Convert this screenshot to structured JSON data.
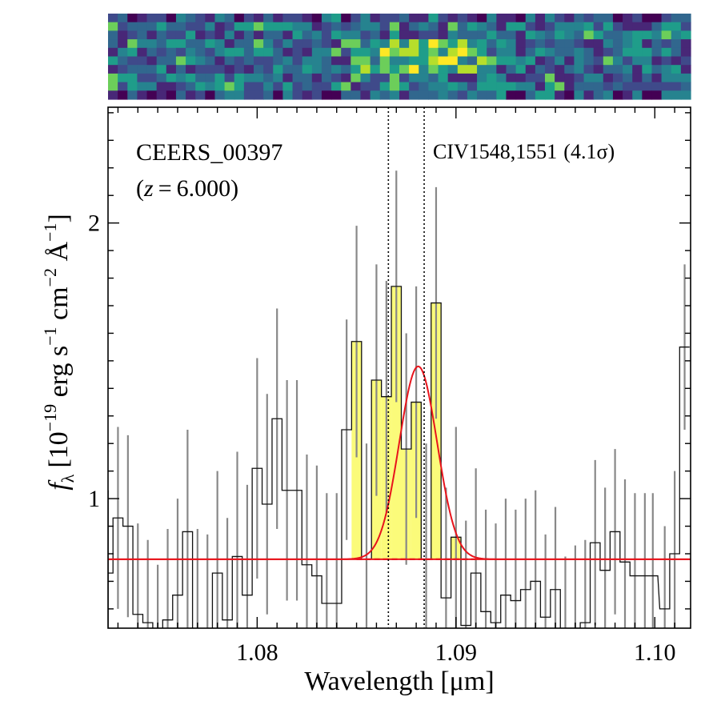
{
  "chart_data": {
    "type": "step",
    "object_label": "CEERS_00397",
    "redshift_label": "(z = 6.000)",
    "redshift_z": "z",
    "redshift_value": "6.000",
    "redshift_open": "(",
    "redshift_close": ")",
    "redshift_eq": "=",
    "line_label": "CIV1548,1551",
    "line_sigma": "(4.1σ)",
    "xlabel": "Wavelength [μm]",
    "ylabel": "f_λ [10^-19 erg s^-1 cm^-2 Å^-1]",
    "ylabel_parts": {
      "f": "f",
      "lambda": "λ",
      "open": "[10",
      "exp1": "−19",
      "erg": " erg s",
      "exp2": "−1",
      "cm": " cm",
      "exp3": "−2",
      "angstrom": " Å",
      "exp4": "−1",
      "close": "]"
    },
    "xlim": [
      1.0725,
      1.1018
    ],
    "ylim": [
      0.53,
      2.42
    ],
    "xticks": [
      1.08,
      1.09,
      1.1
    ],
    "xtick_labels": [
      "1.08",
      "1.09",
      "1.10"
    ],
    "yticks": [
      1,
      2
    ],
    "ytick_labels": [
      "1",
      "2"
    ],
    "continuum": 0.78,
    "line_markers": [
      1.0866,
      1.0884
    ],
    "gaussian": {
      "center": 1.0881,
      "amplitude": 0.7,
      "sigma": 0.00095
    },
    "highlight_range": [
      1.085,
      1.091
    ],
    "bin_width": 0.0005,
    "x": [
      1.0725,
      1.073,
      1.0735,
      1.074,
      1.0745,
      1.075,
      1.0755,
      1.076,
      1.0765,
      1.077,
      1.0775,
      1.078,
      1.0785,
      1.079,
      1.0795,
      1.08,
      1.0805,
      1.081,
      1.0815,
      1.082,
      1.0825,
      1.083,
      1.0835,
      1.084,
      1.0845,
      1.085,
      1.0855,
      1.086,
      1.0865,
      1.087,
      1.0875,
      1.088,
      1.0885,
      1.089,
      1.0895,
      1.09,
      1.0905,
      1.091,
      1.0915,
      1.092,
      1.0925,
      1.093,
      1.0935,
      1.094,
      1.0945,
      1.095,
      1.0955,
      1.096,
      1.0965,
      1.097,
      1.0975,
      1.098,
      1.0985,
      1.099,
      1.0995,
      1.0999,
      1.1005,
      1.101,
      1.1015
    ],
    "y": [
      0.73,
      0.93,
      0.9,
      0.58,
      0.55,
      0.43,
      0.56,
      0.65,
      0.88,
      0.52,
      0.5,
      0.73,
      0.56,
      0.79,
      0.65,
      1.11,
      0.98,
      1.29,
      1.03,
      1.03,
      0.76,
      0.72,
      0.62,
      0.62,
      1.25,
      1.57,
      0.78,
      1.43,
      1.37,
      1.77,
      1.18,
      1.35,
      0.78,
      1.71,
      0.64,
      0.86,
      0.54,
      0.73,
      0.59,
      0.55,
      0.65,
      0.63,
      0.67,
      0.7,
      0.57,
      0.67,
      0.49,
      0.53,
      0.55,
      0.84,
      0.74,
      0.88,
      0.77,
      0.72,
      0.72,
      0.72,
      0.6,
      0.8,
      1.55
    ],
    "errors": [
      0.3,
      0.33,
      0.33,
      0.33,
      0.3,
      0.33,
      0.33,
      0.35,
      0.37,
      0.37,
      0.37,
      0.37,
      0.37,
      0.38,
      0.4,
      0.4,
      0.4,
      0.4,
      0.4,
      0.4,
      0.4,
      0.4,
      0.4,
      0.4,
      0.4,
      0.42,
      0.42,
      0.42,
      0.42,
      0.42,
      0.42,
      0.42,
      0.42,
      0.42,
      0.4,
      0.4,
      0.38,
      0.38,
      0.37,
      0.36,
      0.35,
      0.33,
      0.33,
      0.33,
      0.3,
      0.3,
      0.3,
      0.3,
      0.3,
      0.3,
      0.3,
      0.3,
      0.3,
      0.3,
      0.3,
      0.3,
      0.3,
      0.3,
      0.3
    ],
    "colors": {
      "fill": "#fbfb7a",
      "model": "#e8141c",
      "errorbar": "#888888",
      "step": "#111111"
    }
  },
  "spectrum_2d": {
    "label": "2D spectrum",
    "colormap": "viridis"
  }
}
